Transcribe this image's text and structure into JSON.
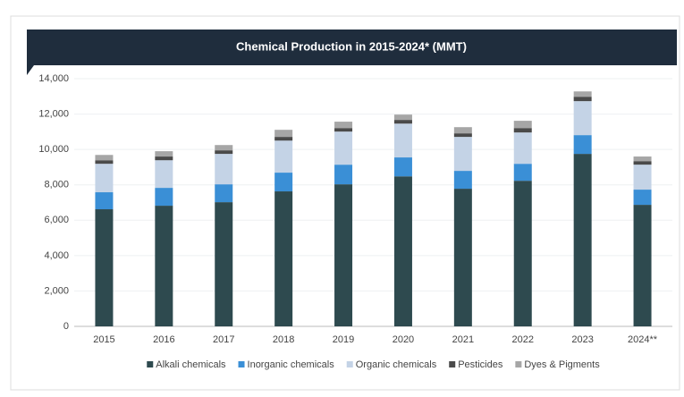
{
  "chart_data": {
    "type": "stacked_bar",
    "title": "Chemical Production in 2015-2024* (MMT)",
    "categories": [
      "2015",
      "2016",
      "2017",
      "2018",
      "2019",
      "2020",
      "2021",
      "2022",
      "2023",
      "2024**"
    ],
    "series": [
      {
        "name": "Alkali chemicals",
        "color": "#2e4a4f",
        "values": [
          6620,
          6820,
          7020,
          7630,
          8030,
          8480,
          7780,
          8230,
          9750,
          6870
        ]
      },
      {
        "name": "Inorganic chemicals",
        "color": "#3a8fd6",
        "values": [
          960,
          1010,
          1010,
          1060,
          1110,
          1070,
          1010,
          960,
          1060,
          860
        ]
      },
      {
        "name": "Organic chemicals",
        "color": "#c4d3e6",
        "values": [
          1610,
          1560,
          1720,
          1810,
          1870,
          1910,
          1920,
          1770,
          1920,
          1410
        ]
      },
      {
        "name": "Pesticides",
        "color": "#4a4a4a",
        "values": [
          200,
          210,
          200,
          210,
          200,
          210,
          200,
          250,
          250,
          200
        ]
      },
      {
        "name": "Dyes & Pigments",
        "color": "#a6a6a6",
        "values": [
          300,
          300,
          300,
          400,
          360,
          300,
          350,
          410,
          300,
          260
        ]
      }
    ],
    "ylim": [
      0,
      14000
    ],
    "yticks": [
      0,
      {
        "value": 2000,
        "label": "2,000"
      },
      {
        "value": 4000,
        "label": "4,000"
      },
      {
        "value": 6000,
        "label": "6,000"
      },
      {
        "value": 8000,
        "label": "8,000"
      },
      {
        "value": 10000,
        "label": "10,000"
      },
      {
        "value": 12000,
        "label": "12,000"
      },
      {
        "value": 14000,
        "label": "14,000"
      }
    ],
    "grid": true
  }
}
